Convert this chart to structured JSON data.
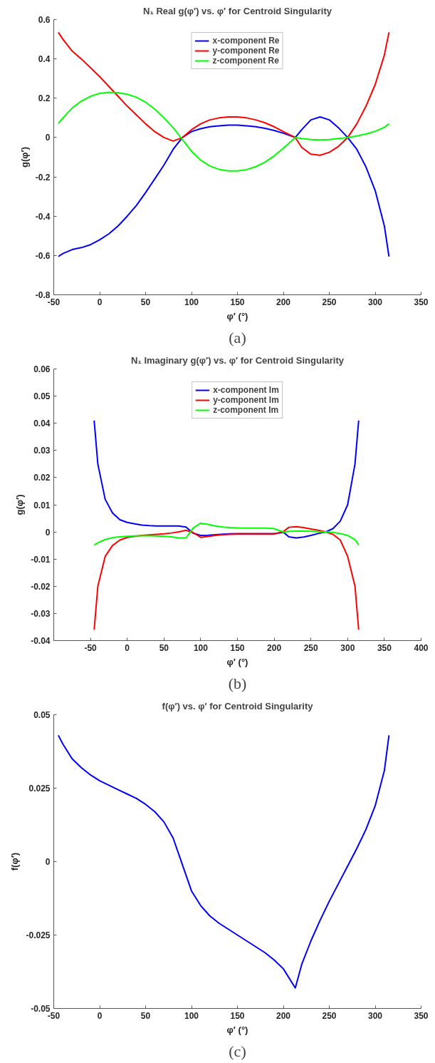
{
  "chart_data": [
    {
      "type": "line",
      "title": "N₁ Real g(φ′) vs. φ′ for Centroid Singularity",
      "xlabel": "φ′ (°)",
      "ylabel": "g(φ′)",
      "annotations": [
        "(a)"
      ],
      "legend": "top",
      "x": [
        -45,
        -40,
        -30,
        -20,
        -10,
        0,
        10,
        20,
        30,
        40,
        50,
        60,
        70,
        80,
        90,
        100,
        110,
        120,
        130,
        140,
        150,
        160,
        170,
        180,
        190,
        200,
        213,
        220,
        230,
        240,
        250,
        260,
        270,
        280,
        290,
        300,
        310,
        315
      ],
      "xlim": [
        -50,
        350
      ],
      "xticks": [
        -50,
        0,
        50,
        100,
        150,
        200,
        250,
        300,
        350
      ],
      "ylim": [
        -0.8,
        0.6
      ],
      "yticks": [
        -0.8,
        -0.6,
        -0.4,
        -0.2,
        0,
        0.2,
        0.4,
        0.6
      ],
      "series": [
        {
          "name": "x-component Re",
          "color": "#0000ff",
          "values": [
            -0.605,
            -0.59,
            -0.57,
            -0.56,
            -0.545,
            -0.52,
            -0.49,
            -0.45,
            -0.4,
            -0.345,
            -0.28,
            -0.21,
            -0.14,
            -0.06,
            0.0,
            0.03,
            0.045,
            0.055,
            0.06,
            0.063,
            0.063,
            0.06,
            0.055,
            0.047,
            0.036,
            0.022,
            0.0,
            0.04,
            0.09,
            0.105,
            0.09,
            0.05,
            0.0,
            -0.06,
            -0.15,
            -0.27,
            -0.45,
            -0.605
          ]
        },
        {
          "name": "y-component Re",
          "color": "#ff0000",
          "values": [
            0.535,
            0.5,
            0.44,
            0.4,
            0.355,
            0.31,
            0.26,
            0.21,
            0.16,
            0.115,
            0.07,
            0.03,
            0.0,
            -0.018,
            0.0,
            0.04,
            0.07,
            0.09,
            0.1,
            0.105,
            0.105,
            0.1,
            0.09,
            0.075,
            0.055,
            0.03,
            0.0,
            -0.05,
            -0.085,
            -0.09,
            -0.075,
            -0.045,
            0.0,
            0.07,
            0.16,
            0.27,
            0.42,
            0.535
          ]
        },
        {
          "name": "z-component Re",
          "color": "#00ff00",
          "values": [
            0.072,
            0.1,
            0.15,
            0.185,
            0.21,
            0.225,
            0.23,
            0.228,
            0.22,
            0.205,
            0.18,
            0.145,
            0.1,
            0.05,
            -0.01,
            -0.07,
            -0.115,
            -0.145,
            -0.162,
            -0.17,
            -0.17,
            -0.163,
            -0.148,
            -0.125,
            -0.093,
            -0.055,
            0.0,
            -0.005,
            -0.01,
            -0.012,
            -0.01,
            -0.005,
            0.0,
            0.008,
            0.018,
            0.032,
            0.052,
            0.07
          ]
        }
      ]
    },
    {
      "type": "line",
      "title": "N₁ Imaginary g(φ′) vs. φ′ for Centroid Singularity",
      "xlabel": "φ′ (°)",
      "ylabel": "g(φ′)",
      "annotations": [
        "(b)"
      ],
      "legend": "top",
      "x": [
        -45,
        -40,
        -30,
        -20,
        -10,
        0,
        10,
        20,
        30,
        40,
        50,
        60,
        70,
        80,
        90,
        100,
        110,
        120,
        130,
        140,
        150,
        160,
        170,
        180,
        190,
        200,
        213,
        220,
        230,
        240,
        250,
        260,
        270,
        280,
        290,
        300,
        310,
        315
      ],
      "xlim": [
        -100,
        400
      ],
      "xticks": [
        -50,
        0,
        50,
        100,
        150,
        200,
        250,
        300,
        350,
        400
      ],
      "ylim": [
        -0.04,
        0.06
      ],
      "yticks": [
        -0.04,
        -0.03,
        -0.02,
        -0.01,
        0,
        0.01,
        0.02,
        0.03,
        0.04,
        0.05,
        0.06
      ],
      "series": [
        {
          "name": "x-component Im",
          "color": "#0000ff",
          "values": [
            0.041,
            0.025,
            0.012,
            0.007,
            0.0045,
            0.0035,
            0.003,
            0.0025,
            0.0023,
            0.0022,
            0.0022,
            0.0022,
            0.0022,
            0.0018,
            -0.0005,
            -0.0013,
            -0.0012,
            -0.001,
            -0.0008,
            -0.0007,
            -0.0006,
            -0.0006,
            -0.0006,
            -0.0006,
            -0.0006,
            -0.0006,
            -0.0002,
            -0.0018,
            -0.0022,
            -0.0019,
            -0.0013,
            -0.0006,
            0.0,
            0.0012,
            0.004,
            0.01,
            0.025,
            0.041
          ]
        },
        {
          "name": "y-component Im",
          "color": "#ff0000",
          "values": [
            -0.036,
            -0.02,
            -0.009,
            -0.005,
            -0.003,
            -0.002,
            -0.0016,
            -0.0013,
            -0.0011,
            -0.0009,
            -0.0007,
            -0.0004,
            0.0,
            0.0006,
            -0.0003,
            -0.002,
            -0.0017,
            -0.0013,
            -0.001,
            -0.0009,
            -0.0008,
            -0.0008,
            -0.0008,
            -0.0008,
            -0.0008,
            -0.0008,
            0.0002,
            0.0017,
            0.0019,
            0.0016,
            0.0011,
            0.0006,
            0.0,
            -0.0009,
            -0.003,
            -0.009,
            -0.02,
            -0.036
          ]
        },
        {
          "name": "z-component Im",
          "color": "#00ff00",
          "values": [
            -0.0048,
            -0.004,
            -0.0028,
            -0.0021,
            -0.0018,
            -0.0016,
            -0.0015,
            -0.0014,
            -0.0014,
            -0.0015,
            -0.0016,
            -0.0018,
            -0.0022,
            -0.0022,
            0.0015,
            0.0032,
            0.0028,
            0.0022,
            0.0018,
            0.0016,
            0.0015,
            0.0014,
            0.0014,
            0.0014,
            0.0014,
            0.0012,
            -0.0001,
            0.0002,
            0.0003,
            0.0003,
            0.0002,
            0.0001,
            0.0,
            -0.0002,
            -0.0006,
            -0.0013,
            -0.0028,
            -0.0048
          ]
        }
      ]
    },
    {
      "type": "line",
      "title": "f(φ′) vs. φ′ for Centroid Singularity",
      "xlabel": "φ′ (°)",
      "ylabel": "f(φ′)",
      "annotations": [
        "(c)"
      ],
      "x": [
        -45,
        -40,
        -30,
        -20,
        -10,
        0,
        10,
        20,
        30,
        40,
        50,
        60,
        70,
        80,
        90,
        100,
        110,
        120,
        130,
        140,
        150,
        160,
        170,
        180,
        190,
        200,
        213,
        220,
        230,
        240,
        250,
        260,
        270,
        280,
        290,
        300,
        310,
        315
      ],
      "xlim": [
        -50,
        350
      ],
      "xticks": [
        -50,
        0,
        50,
        100,
        150,
        200,
        250,
        300,
        350
      ],
      "ylim": [
        -0.05,
        0.05
      ],
      "yticks": [
        -0.05,
        -0.025,
        0,
        0.025,
        0.05
      ],
      "series": [
        {
          "color": "#0000ff",
          "values": [
            0.043,
            0.04,
            0.035,
            0.032,
            0.0295,
            0.0275,
            0.026,
            0.0245,
            0.023,
            0.0215,
            0.0195,
            0.017,
            0.0135,
            0.008,
            -0.001,
            -0.01,
            -0.015,
            -0.0185,
            -0.021,
            -0.023,
            -0.025,
            -0.027,
            -0.029,
            -0.031,
            -0.0335,
            -0.0365,
            -0.043,
            -0.035,
            -0.027,
            -0.02,
            -0.0135,
            -0.0075,
            -0.0015,
            0.0045,
            0.011,
            0.019,
            0.031,
            0.043
          ]
        }
      ]
    }
  ]
}
